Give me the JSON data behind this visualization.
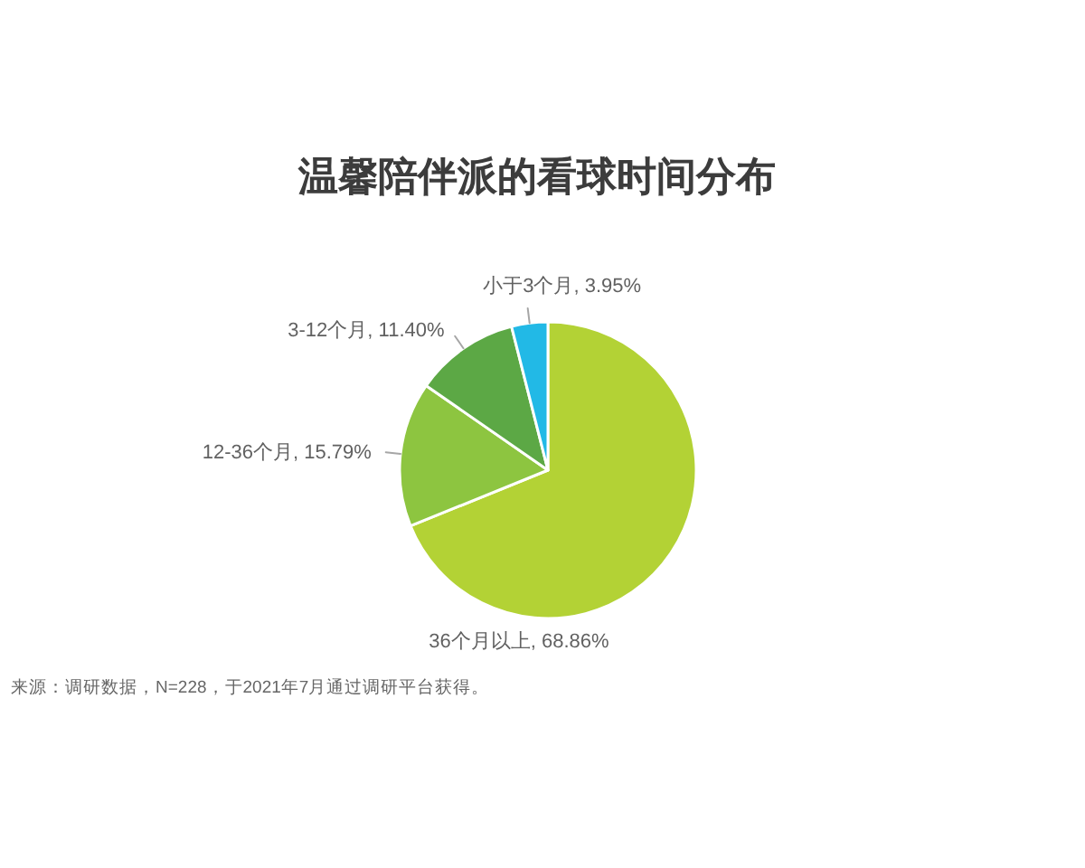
{
  "chart_data": {
    "type": "pie",
    "title": "温馨陪伴派的看球时间分布",
    "categories": [
      "36个月以上",
      "12-36个月",
      "3-12个月",
      "小于3个月"
    ],
    "values": [
      68.86,
      15.79,
      11.4,
      3.95
    ],
    "value_labels": [
      "68.86%",
      "15.79%",
      "11.40%",
      "3.95%"
    ],
    "colors": [
      "#b3d235",
      "#8dc540",
      "#5ca845",
      "#22b9e6"
    ],
    "annotations": [
      "来源：调研数据，N=228，于2021年7月通过调研平台获得。"
    ]
  }
}
